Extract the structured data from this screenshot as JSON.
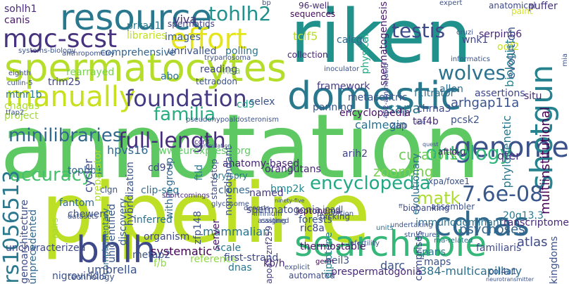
{
  "palette": {
    "dark_purple": "#440154",
    "indigo": "#46327e",
    "blue": "#365c8d",
    "teal": "#277f8e",
    "green_teal": "#1fa187",
    "green": "#4ac16d",
    "lime": "#a0da39",
    "yellow": "#fde725"
  },
  "words": [
    {
      "text": "annotation",
      "color": "#5ec962"
    },
    {
      "text": "pipeline",
      "color": "#bddf26"
    },
    {
      "text": "riken",
      "color": "#21918c"
    },
    {
      "text": "resource",
      "color": "#2a788e"
    },
    {
      "text": "spermatocytes",
      "color": "#b5de2b"
    },
    {
      "text": "domestic",
      "color": "#2a788e"
    },
    {
      "text": "manually",
      "color": "#c8e020"
    },
    {
      "text": "mgc-scst",
      "color": "#46327e"
    },
    {
      "text": "effort",
      "color": "#e5e419"
    },
    {
      "text": "genome",
      "color": "#3b528b"
    },
    {
      "text": "searchable",
      "color": "#35b779"
    },
    {
      "text": "bhlh",
      "color": "#3e4989"
    },
    {
      "text": "cdnas",
      "color": "#31688e"
    },
    {
      "text": "shotgun",
      "color": "#26828e"
    },
    {
      "text": "foundation",
      "color": "#443a83"
    },
    {
      "text": "full-length",
      "color": "#472d7b"
    },
    {
      "text": "tohlh2",
      "color": "#21918c"
    },
    {
      "text": "testis",
      "color": "#3e4989"
    },
    {
      "text": "encyclopedia",
      "color": "#22a884"
    },
    {
      "text": "wolves",
      "color": "#2c728e"
    },
    {
      "text": "minilibraries",
      "color": "#31688e"
    },
    {
      "text": "ontology",
      "color": "#2fb47c"
    },
    {
      "text": "familia",
      "color": "#27ad81"
    },
    {
      "text": "accuracy",
      "color": "#48c16e"
    },
    {
      "text": "rs1056513",
      "color": "#2a788e"
    },
    {
      "text": "7.6e-08",
      "color": "#38588c"
    },
    {
      "text": "matk",
      "color": "#addc30"
    },
    {
      "text": "arhgap11a",
      "color": "#3b528b"
    },
    {
      "text": "calmegin",
      "color": "#2d708e"
    },
    {
      "text": "sapa",
      "color": "#2a788e"
    },
    {
      "text": "curators",
      "color": "#6ece58"
    },
    {
      "text": "zooming",
      "color": "#7ad151"
    },
    {
      "text": "bmp2k",
      "color": "#24868e"
    },
    {
      "text": "atlas",
      "color": "#3e4989"
    },
    {
      "text": "psychoses",
      "color": "#32648e"
    },
    {
      "text": "familiaris",
      "color": "#3e4989"
    },
    {
      "text": "transcriptome",
      "color": "#482878"
    },
    {
      "text": "384-multicapillary",
      "color": "#2d708e"
    },
    {
      "text": "leptonema",
      "color": "#450559"
    },
    {
      "text": "ric8a",
      "color": "#3f4788"
    },
    {
      "text": "forests",
      "color": "#39558c"
    },
    {
      "text": "mammalian",
      "color": "#2d708e"
    },
    {
      "text": "apoa5-znf259",
      "color": "#433e85"
    },
    {
      "text": "diplotene",
      "color": "#25848e"
    },
    {
      "text": "systematic",
      "color": "#440154"
    },
    {
      "text": "scale",
      "color": "#2a788e"
    },
    {
      "text": "thermostable",
      "color": "#471164"
    },
    {
      "text": "uncharacterized",
      "color": "#3e4989"
    },
    {
      "text": "unprecedented",
      "color": "#31688e"
    },
    {
      "text": "genoarchitecture",
      "color": "#3e4989"
    },
    {
      "text": "hpvs16",
      "color": "#31688e"
    },
    {
      "text": "unrivalled",
      "color": "#3b528b"
    },
    {
      "text": "images",
      "color": "#38588c"
    },
    {
      "text": "polling",
      "color": "#2c728e"
    },
    {
      "text": "tclf5",
      "color": "#b8de29"
    },
    {
      "text": "cd9",
      "color": "#1f9e89"
    },
    {
      "text": "calcgc",
      "color": "#31688e"
    },
    {
      "text": "collection",
      "color": "#482475"
    },
    {
      "text": "rearrayed",
      "color": "#7ad151"
    },
    {
      "text": "comprehensive",
      "color": "#32648e"
    },
    {
      "text": "libraries",
      "color": "#c2df23"
    },
    {
      "text": "prkaa1",
      "color": "#2a788e"
    },
    {
      "text": "viva",
      "color": "#472c7a"
    },
    {
      "text": "spermatids",
      "color": "#433e85"
    },
    {
      "text": "96-well",
      "color": "#482878"
    },
    {
      "text": "sequences",
      "color": "#460a5d"
    },
    {
      "text": "serpinb6",
      "color": "#482878"
    },
    {
      "text": "anatomical",
      "color": "#3e4989"
    },
    {
      "text": "puffer",
      "color": "#46327e"
    },
    {
      "text": "paint",
      "color": "#d2e21b"
    },
    {
      "text": "wnk1",
      "color": "#414487"
    },
    {
      "text": "evolution",
      "color": "#3b528b"
    },
    {
      "text": "biologist",
      "color": "#26818e"
    },
    {
      "text": "odf2",
      "color": "#c8e020"
    },
    {
      "text": "phylogenetic",
      "color": "#2a788e"
    },
    {
      "text": "multiinstitutional",
      "color": "#440154"
    },
    {
      "text": "spermatogenesis",
      "color": "#481b6d"
    },
    {
      "text": "physical",
      "color": "#22a884"
    },
    {
      "text": "framework",
      "color": "#443983"
    },
    {
      "text": "metacentric",
      "color": "#3a548c"
    },
    {
      "text": "allen",
      "color": "#2f6c8e"
    },
    {
      "text": "assertions",
      "color": "#3f4788"
    },
    {
      "text": "situ",
      "color": "#482878"
    },
    {
      "text": "f1ltrator",
      "color": "#2d708e"
    },
    {
      "text": "chrna3",
      "color": "#3e4989"
    },
    {
      "text": "pcsk2",
      "color": "#3b528b"
    },
    {
      "text": "encyclopaedia",
      "color": "#471063"
    },
    {
      "text": "panning",
      "color": "#38588c"
    },
    {
      "text": "selex",
      "color": "#3b528b"
    },
    {
      "text": "risa",
      "color": "#7ad151"
    },
    {
      "text": "reading",
      "color": "#3f4788"
    },
    {
      "text": "trim25",
      "color": "#414487"
    },
    {
      "text": "abo",
      "color": "#2c728e"
    },
    {
      "text": "mtnr1b",
      "color": "#2a788e"
    },
    {
      "text": "chagas",
      "color": "#addc30"
    },
    {
      "text": "project",
      "color": "#a2da37"
    },
    {
      "text": "sohlh1",
      "color": "#482878"
    },
    {
      "text": "canis",
      "color": "#48186a"
    },
    {
      "text": "topbp1",
      "color": "#31688e"
    },
    {
      "text": "cycler",
      "color": "#3e4989"
    },
    {
      "text": "preparator",
      "color": "#b0dd2f"
    },
    {
      "text": "cd97",
      "color": "#3f4788"
    },
    {
      "text": "hybridization",
      "color": "#3b528b"
    },
    {
      "text": "within-group",
      "color": "#31688e"
    },
    {
      "text": "anatomy-based",
      "color": "#482475"
    },
    {
      "text": "pry/spry",
      "color": "#2a788e"
    },
    {
      "text": "clones",
      "color": "#31688e"
    },
    {
      "text": "orangutans",
      "color": "#482878"
    },
    {
      "text": "named",
      "color": "#453581"
    },
    {
      "text": "ftld",
      "color": "#2a788e"
    },
    {
      "text": "start/stop",
      "color": "#3e4989"
    },
    {
      "text": "taf4b",
      "color": "#482878"
    },
    {
      "text": "zap",
      "color": "#3b528b"
    },
    {
      "text": "xpa/foxe1",
      "color": "#3b528b"
    },
    {
      "text": "evolutionary",
      "color": "#2d708e"
    },
    {
      "text": "aftld-u",
      "color": "#481467"
    },
    {
      "text": "qter",
      "color": "#472f7d"
    },
    {
      "text": "arih2",
      "color": "#414487"
    },
    {
      "text": "www.eurexpress.org",
      "color": "#5ec962"
    },
    {
      "text": "clgn",
      "color": "#3b528b"
    },
    {
      "text": "fantom",
      "color": "#31688e"
    },
    {
      "text": "clip-seq",
      "color": "#2d708e"
    },
    {
      "text": "nonredundant",
      "color": "#3b528b"
    },
    {
      "text": "spermatogonia",
      "color": "#3e4989"
    },
    {
      "text": "inadl",
      "color": "#3b528b"
    },
    {
      "text": "picking",
      "color": "#3e4989"
    },
    {
      "text": "biobanking",
      "color": "#3e4989"
    },
    {
      "text": "assembler",
      "color": "#3b528b"
    },
    {
      "text": "20q13.3",
      "color": "#2a788e"
    },
    {
      "text": "immunodominant",
      "color": "#2d708e"
    },
    {
      "text": "pairs",
      "color": "#a0da39"
    },
    {
      "text": "chewers",
      "color": "#3b528b"
    },
    {
      "text": "complementary",
      "color": "#2d708e"
    },
    {
      "text": "unidentified",
      "color": "#39568c"
    },
    {
      "text": "discovery",
      "color": "#365c8d"
    },
    {
      "text": "inferred",
      "color": "#2d708e"
    },
    {
      "text": "zfp148",
      "color": "#3b528b"
    },
    {
      "text": "organism",
      "color": "#3e4989"
    },
    {
      "text": "metap2",
      "color": "#3b528b"
    },
    {
      "text": "f/b",
      "color": "#8fd744"
    },
    {
      "text": "reference",
      "color": "#8fd744"
    },
    {
      "text": "first-strand",
      "color": "#3e4989"
    },
    {
      "text": "server",
      "color": "#481467"
    },
    {
      "text": "dnas",
      "color": "#2a788e"
    },
    {
      "text": "kb/h",
      "color": "#482878"
    },
    {
      "text": "automated",
      "color": "#3e4989"
    },
    {
      "text": "prespermatogonia",
      "color": "#482878"
    },
    {
      "text": "neil3",
      "color": "#3b528b"
    },
    {
      "text": "darc",
      "color": "#3b528b"
    },
    {
      "text": "umbrella",
      "color": "#3b528b"
    },
    {
      "text": "nigroviridis",
      "color": "#3b528b"
    },
    {
      "text": "spans",
      "color": "#2a788e"
    },
    {
      "text": "maps",
      "color": "#3b528b"
    },
    {
      "text": "comprises",
      "color": "#3e4989"
    },
    {
      "text": "kingdoms",
      "color": "#3b528b"
    },
    {
      "text": "technology",
      "color": "#3b528b"
    },
    {
      "text": "explicit",
      "color": "#3b528b"
    },
    {
      "text": "col4a1",
      "color": "#3b528b"
    },
    {
      "text": "germ",
      "color": "#440154"
    },
    {
      "text": "rna-related",
      "color": "#2d708e"
    },
    {
      "text": "infertility",
      "color": "#3b528b"
    },
    {
      "text": "deserts",
      "color": "#3e4989"
    },
    {
      "text": "assigned",
      "color": "#3e4989"
    },
    {
      "text": "proportion",
      "color": "#3b528b"
    },
    {
      "text": "undertaking",
      "color": "#3b528b"
    },
    {
      "text": "infinium",
      "color": "#3b528b"
    },
    {
      "text": "units",
      "color": "#2d708e"
    },
    {
      "text": "ccr3",
      "color": "#482878"
    },
    {
      "text": "shortcomings",
      "color": "#482878"
    },
    {
      "text": "cullin-5",
      "color": "#3b528b"
    },
    {
      "text": "eighth",
      "color": "#3e4989"
    },
    {
      "text": "tetraodon",
      "color": "#3b528b"
    },
    {
      "text": "inoculator",
      "color": "#3b528b"
    },
    {
      "text": "systems-biology",
      "color": "#3b528b"
    },
    {
      "text": "anthropometry",
      "color": "#3b528b"
    },
    {
      "text": "452-amino-acid",
      "color": "#3e4989"
    },
    {
      "text": "bp",
      "color": "#3b528b"
    },
    {
      "text": "expert",
      "color": "#3b528b"
    },
    {
      "text": "cruzi",
      "color": "#3b528b"
    },
    {
      "text": "informatics",
      "color": "#3b528b"
    },
    {
      "text": "trypanosoma",
      "color": "#3b528b"
    },
    {
      "text": "tfap2",
      "color": "#3b528b"
    },
    {
      "text": "structures",
      "color": "#3b528b"
    },
    {
      "text": "mia",
      "color": "#3b528b"
    },
    {
      "text": "casting",
      "color": "#3b528b"
    },
    {
      "text": "datasets",
      "color": "#3b528b"
    },
    {
      "text": "glycosome",
      "color": "#3b528b"
    },
    {
      "text": "pseudohypoaldosteronism",
      "color": "#3b528b"
    },
    {
      "text": "neurotransmitter",
      "color": "#3b528b"
    },
    {
      "text": "ixlq",
      "color": "#3b528b"
    },
    {
      "text": "manipulation",
      "color": "#3b528b"
    },
    {
      "text": "ninety-five",
      "color": "#3b528b"
    },
    {
      "text": "quest",
      "color": "#3b528b"
    },
    {
      "text": "ff",
      "color": "#3b528b"
    }
  ]
}
